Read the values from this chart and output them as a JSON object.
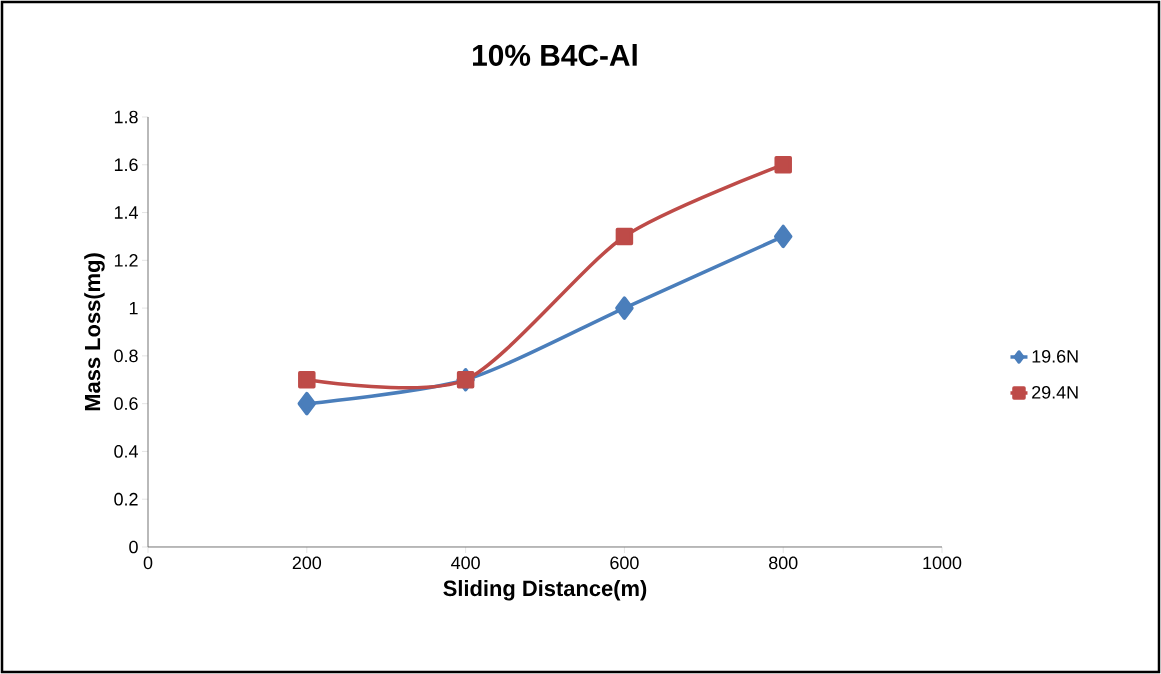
{
  "chart_data": {
    "type": "line",
    "title": "10% B4C-Al",
    "xlabel": "Sliding Distance(m)",
    "ylabel": "Mass Loss(mg)",
    "x": [
      200,
      400,
      600,
      800
    ],
    "series": [
      {
        "name": "19.6N",
        "color": "#4a7ebb",
        "marker": "diamond",
        "values": [
          0.6,
          0.7,
          1.0,
          1.3
        ]
      },
      {
        "name": "29.4N",
        "color": "#be4b48",
        "marker": "square",
        "values": [
          0.7,
          0.7,
          1.3,
          1.6
        ]
      }
    ],
    "xlim": [
      0,
      1000
    ],
    "xticks": [
      0,
      200,
      400,
      600,
      800,
      1000
    ],
    "ylim": [
      0,
      1.8
    ],
    "yticks": [
      0,
      0.2,
      0.4,
      0.6,
      0.8,
      1,
      1.2,
      1.4,
      1.6,
      1.8
    ],
    "grid": false,
    "legend": "right",
    "line_style": "solid"
  }
}
